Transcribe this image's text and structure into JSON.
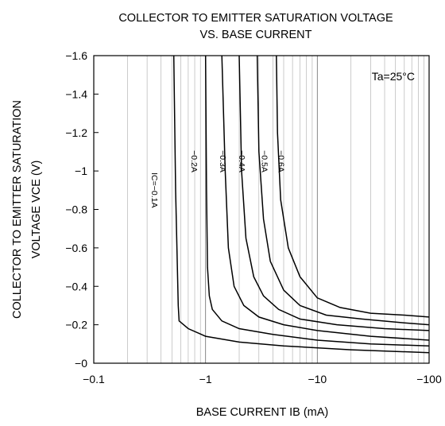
{
  "chart_data": {
    "type": "line",
    "title_lines": [
      "COLLECTOR TO EMITTER SATURATION VOLTAGE",
      "VS. BASE CURRENT"
    ],
    "xlabel": "BASE CURRENT  IB  (mA)",
    "ylabel_lines": [
      "COLLECTOR TO EMITTER SATURATION",
      "VOLTAGE  VCE  (V)"
    ],
    "x_scale": "log",
    "xlim": [
      -0.1,
      -100
    ],
    "ylim": [
      0,
      -1.6
    ],
    "x_ticks": [
      {
        "value": -0.1,
        "label": "−0.1"
      },
      {
        "value": -1,
        "label": "−1"
      },
      {
        "value": -10,
        "label": "−10"
      },
      {
        "value": -100,
        "label": "−100"
      }
    ],
    "y_ticks": [
      {
        "value": 0,
        "label": "−0"
      },
      {
        "value": -0.2,
        "label": "−0.2"
      },
      {
        "value": -0.4,
        "label": "−0.4"
      },
      {
        "value": -0.6,
        "label": "−0.6"
      },
      {
        "value": -0.8,
        "label": "−0.8"
      },
      {
        "value": -1,
        "label": "−1"
      },
      {
        "value": -1.2,
        "label": "−1.2"
      },
      {
        "value": -1.4,
        "label": "−1.4"
      },
      {
        "value": -1.6,
        "label": "−1.6"
      }
    ],
    "grid": {
      "x_minor_log": true,
      "y_major": false
    },
    "annotation": "Ta=25°C",
    "series": [
      {
        "name": "IC=−0.1A",
        "label_at": {
          "x": -0.33,
          "y": -0.9
        },
        "points": [
          [
            -0.52,
            -1.6
          ],
          [
            -0.54,
            -0.9
          ],
          [
            -0.56,
            -0.5
          ],
          [
            -0.57,
            -0.3
          ],
          [
            -0.58,
            -0.22
          ],
          [
            -0.7,
            -0.18
          ],
          [
            -1,
            -0.14
          ],
          [
            -2,
            -0.11
          ],
          [
            -5,
            -0.09
          ],
          [
            -20,
            -0.07
          ],
          [
            -100,
            -0.055
          ]
        ]
      },
      {
        "name": "−0.2A",
        "label_at": {
          "x": -0.75,
          "y": -1.05
        },
        "points": [
          [
            -1.0,
            -1.6
          ],
          [
            -1.02,
            -0.9
          ],
          [
            -1.04,
            -0.5
          ],
          [
            -1.08,
            -0.35
          ],
          [
            -1.15,
            -0.28
          ],
          [
            -1.4,
            -0.22
          ],
          [
            -2,
            -0.18
          ],
          [
            -4,
            -0.15
          ],
          [
            -10,
            -0.12
          ],
          [
            -30,
            -0.1
          ],
          [
            -100,
            -0.09
          ]
        ]
      },
      {
        "name": "−0.3A",
        "label_at": {
          "x": -1.35,
          "y": -1.05
        },
        "points": [
          [
            -1.4,
            -1.6
          ],
          [
            -1.5,
            -1.0
          ],
          [
            -1.6,
            -0.6
          ],
          [
            -1.8,
            -0.4
          ],
          [
            -2.2,
            -0.3
          ],
          [
            -3,
            -0.24
          ],
          [
            -5,
            -0.2
          ],
          [
            -10,
            -0.17
          ],
          [
            -30,
            -0.14
          ],
          [
            -100,
            -0.12
          ]
        ]
      },
      {
        "name": "−0.4A",
        "label_at": {
          "x": -2.0,
          "y": -1.05
        },
        "points": [
          [
            -2.0,
            -1.6
          ],
          [
            -2.1,
            -1.0
          ],
          [
            -2.3,
            -0.65
          ],
          [
            -2.7,
            -0.45
          ],
          [
            -3.3,
            -0.35
          ],
          [
            -4.5,
            -0.28
          ],
          [
            -7,
            -0.23
          ],
          [
            -15,
            -0.2
          ],
          [
            -40,
            -0.18
          ],
          [
            -100,
            -0.17
          ]
        ]
      },
      {
        "name": "−0.5A",
        "label_at": {
          "x": -3.2,
          "y": -1.05
        },
        "points": [
          [
            -2.9,
            -1.6
          ],
          [
            -3.0,
            -1.1
          ],
          [
            -3.3,
            -0.75
          ],
          [
            -3.8,
            -0.53
          ],
          [
            -5,
            -0.38
          ],
          [
            -7,
            -0.3
          ],
          [
            -12,
            -0.25
          ],
          [
            -25,
            -0.23
          ],
          [
            -60,
            -0.21
          ],
          [
            -100,
            -0.2
          ]
        ]
      },
      {
        "name": "−0.6A",
        "label_at": {
          "x": -4.5,
          "y": -1.05
        },
        "points": [
          [
            -4.3,
            -1.6
          ],
          [
            -4.4,
            -1.2
          ],
          [
            -4.7,
            -0.85
          ],
          [
            -5.5,
            -0.6
          ],
          [
            -7,
            -0.45
          ],
          [
            -10,
            -0.34
          ],
          [
            -16,
            -0.29
          ],
          [
            -30,
            -0.26
          ],
          [
            -60,
            -0.25
          ],
          [
            -100,
            -0.24
          ]
        ]
      }
    ]
  }
}
